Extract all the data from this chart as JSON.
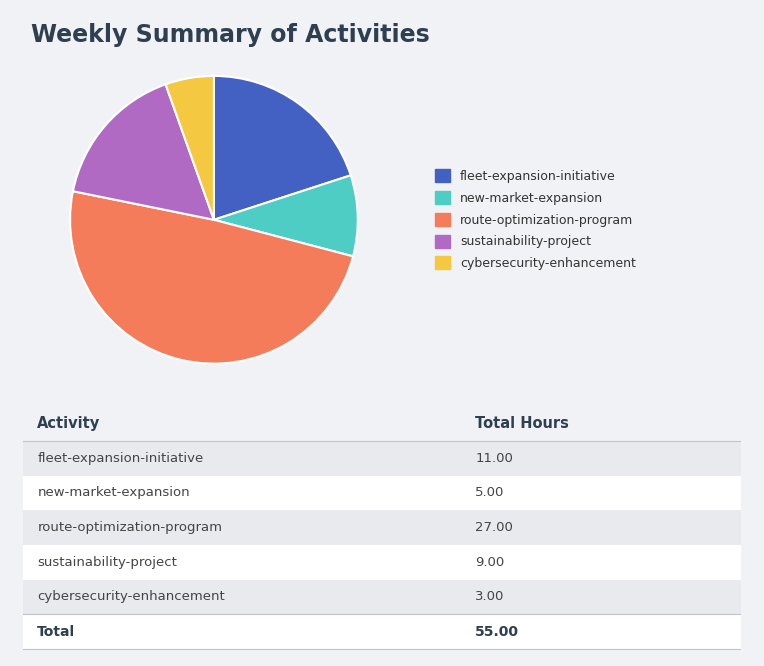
{
  "title": "Weekly Summary of Activities",
  "title_color": "#2d3f50",
  "background_color": "#f0f2f5",
  "activities": [
    "fleet-expansion-initiative",
    "new-market-expansion",
    "route-optimization-program",
    "sustainability-project",
    "cybersecurity-enhancement"
  ],
  "hours": [
    11.0,
    5.0,
    27.0,
    9.0,
    3.0
  ],
  "total": 55.0,
  "colors": [
    "#4361c2",
    "#4ecdc4",
    "#f47c5a",
    "#b06ac4",
    "#f5c842"
  ],
  "table_header_activity": "Activity",
  "table_header_hours": "Total Hours",
  "table_row_colors": [
    "#e8eaed",
    "#ffffff",
    "#e8eaed",
    "#ffffff",
    "#e8eaed"
  ],
  "total_row_color": "#ffffff",
  "line_color": "#c0c4cc"
}
